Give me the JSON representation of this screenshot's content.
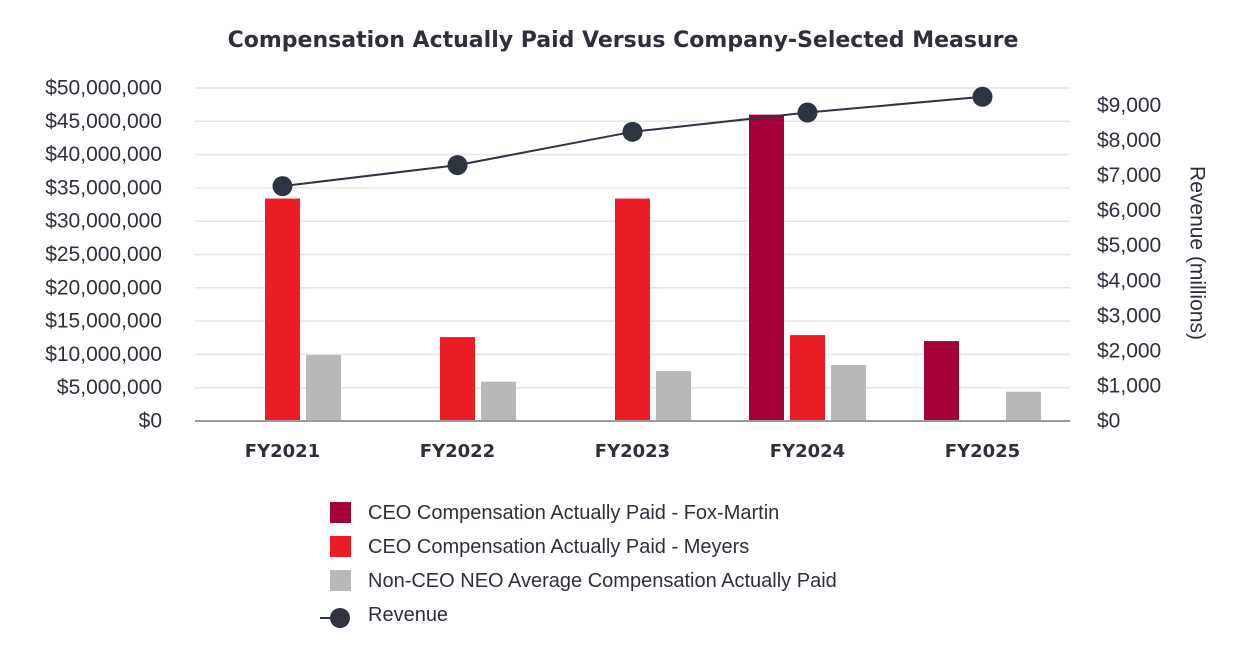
{
  "chart_data": {
    "type": "bar",
    "title": "Compensation Actually Paid Versus Company-Selected Measure",
    "categories": [
      "FY2021",
      "FY2022",
      "FY2023",
      "FY2024",
      "FY2025"
    ],
    "y_left": {
      "ylim": [
        0,
        50000000
      ],
      "ticks": [
        0,
        5000000,
        10000000,
        15000000,
        20000000,
        25000000,
        30000000,
        35000000,
        40000000,
        45000000,
        50000000
      ],
      "tick_labels": [
        "$0",
        "$5,000,000",
        "$10,000,000",
        "$15,000,000",
        "$20,000,000",
        "$25,000,000",
        "$30,000,000",
        "$35,000,000",
        "$40,000,000",
        "$45,000,000",
        "$50,000,000"
      ]
    },
    "y_right": {
      "label": "Revenue (millions)",
      "ylim": [
        0,
        9500
      ],
      "ticks": [
        0,
        1000,
        2000,
        3000,
        4000,
        5000,
        6000,
        7000,
        8000,
        9000
      ],
      "tick_labels": [
        "$0",
        "$1,000",
        "$2,000",
        "$3,000",
        "$4,000",
        "$5,000",
        "$6,000",
        "$7,000",
        "$8,000",
        "$9,000"
      ]
    },
    "grid": true,
    "series": [
      {
        "name": "CEO Compensation Actually Paid - Fox-Martin",
        "type": "bar",
        "axis": "left",
        "color": "#a5003a",
        "values": [
          null,
          null,
          null,
          46000000,
          12000000
        ]
      },
      {
        "name": "CEO Compensation Actually Paid - Meyers",
        "type": "bar",
        "axis": "left",
        "color": "#ec1c24",
        "values": [
          33400000,
          12600000,
          33400000,
          12900000,
          null
        ]
      },
      {
        "name": "Non-CEO NEO Average Compensation Actually Paid",
        "type": "bar",
        "axis": "left",
        "color": "#b8b8b8",
        "values": [
          9900000,
          5900000,
          7500000,
          8400000,
          4400000
        ]
      },
      {
        "name": "Revenue",
        "type": "line",
        "axis": "right",
        "color": "#2e3441",
        "values": [
          6700,
          7300,
          8250,
          8800,
          9250
        ]
      }
    ],
    "legend_position": "bottom"
  }
}
